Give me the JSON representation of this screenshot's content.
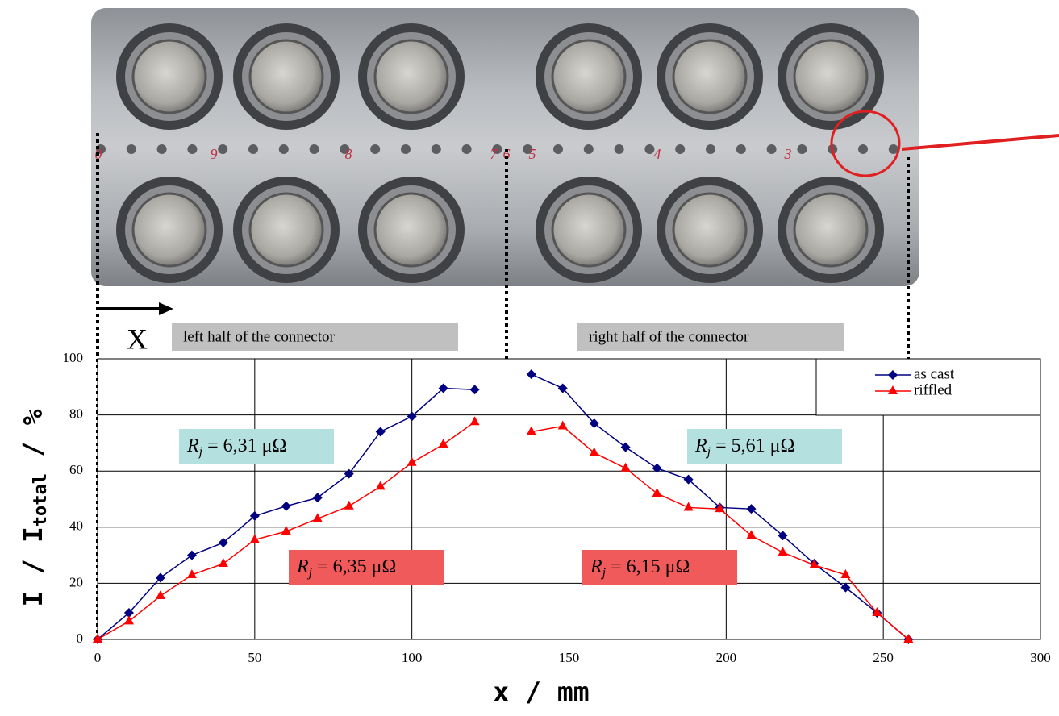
{
  "chart_data": {
    "type": "line",
    "x_label": "x / mm",
    "y_label": {
      "main": "I / I",
      "subscript": "total",
      "suffix": " / %"
    },
    "x": [
      0,
      10,
      20,
      30,
      40,
      50,
      60,
      70,
      80,
      90,
      100,
      110,
      120,
      null,
      138,
      148,
      158,
      168,
      178,
      188,
      198,
      208,
      218,
      228,
      238,
      248,
      258
    ],
    "series": [
      {
        "name": "as cast",
        "color": "#000080",
        "marker": "diamond",
        "values": [
          0,
          9.5,
          22,
          30,
          34.5,
          44,
          47.5,
          50.5,
          59,
          74,
          79.5,
          89.5,
          89,
          null,
          94.5,
          89.5,
          77,
          68.5,
          61,
          57,
          47,
          46.5,
          37,
          27,
          18.5,
          9.5,
          0
        ]
      },
      {
        "name": "riffled",
        "color": "#ff0000",
        "marker": "triangle",
        "values": [
          0,
          6.5,
          15.5,
          23,
          27,
          35.5,
          38.5,
          43,
          47.5,
          54.5,
          63,
          69.5,
          77.5,
          null,
          74,
          76,
          66.5,
          61,
          52,
          47,
          46.5,
          37,
          31,
          26.5,
          23,
          9.5,
          0
        ]
      }
    ],
    "xlim": [
      0,
      300
    ],
    "xticks": [
      0,
      50,
      100,
      150,
      200,
      250,
      300
    ],
    "ylim": [
      0,
      100
    ],
    "yticks": [
      0,
      20,
      40,
      60,
      80,
      100
    ],
    "grid": true,
    "legend": "upper right",
    "annotations": [
      {
        "symbol": "R",
        "subscript": "j",
        "text": " = 6,31 μΩ",
        "background": "#b5e0e0"
      },
      {
        "symbol": "R",
        "subscript": "j",
        "text": " = 6,35 μΩ",
        "background": "#f05a5a"
      },
      {
        "symbol": "R",
        "subscript": "j",
        "text": " = 5,61 μΩ",
        "background": "#b5e0e0"
      },
      {
        "symbol": "R",
        "subscript": "j",
        "text": " = 6,15 μΩ",
        "background": "#f05a5a"
      }
    ],
    "region_labels": [
      "left half of the connector",
      "right half of the connector"
    ],
    "direction_label": "X",
    "photo_labels": [
      "0",
      "9",
      "8",
      "7",
      "6",
      "5",
      "4",
      "3"
    ]
  }
}
